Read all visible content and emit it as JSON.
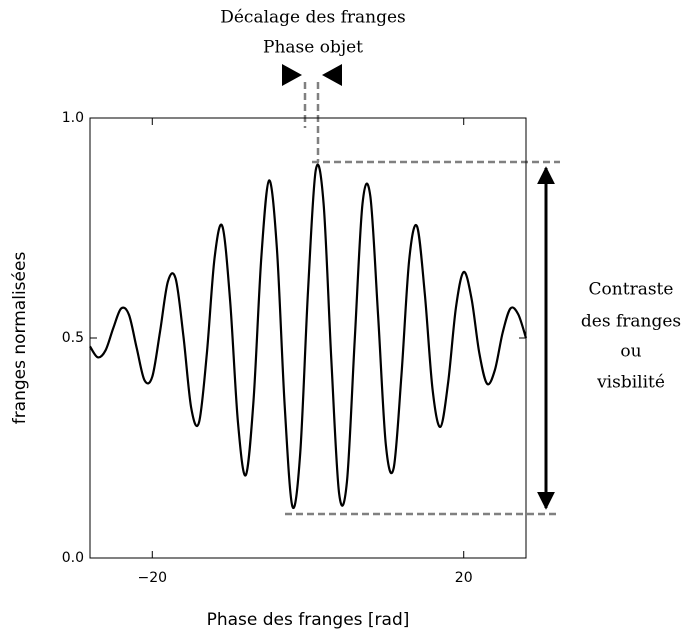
{
  "chart_data": {
    "type": "line",
    "annotations": [
      "Décalage des franges",
      "Phase objet",
      "Contraste",
      "des franges",
      "ou",
      "visbilité"
    ],
    "xlabel": "Phase des franges [rad]",
    "ylabel": "franges normalisées",
    "x": [
      -28,
      -27,
      -26,
      -25,
      -24,
      -23,
      -22,
      -21,
      -20,
      -19,
      -18,
      -17,
      -16,
      -15,
      -14,
      -13,
      -12,
      -11,
      -10,
      -9,
      -8,
      -7,
      -6,
      -5,
      -4,
      -3,
      -2,
      -1,
      0,
      1,
      2,
      3,
      4,
      5,
      6,
      7,
      8,
      9,
      10,
      11,
      12,
      13,
      14,
      15,
      16,
      17,
      18,
      19,
      20,
      21,
      22,
      23,
      24,
      25,
      26,
      27,
      28
    ],
    "values": [
      0.481,
      0.456,
      0.472,
      0.523,
      0.567,
      0.553,
      0.477,
      0.404,
      0.412,
      0.515,
      0.628,
      0.635,
      0.504,
      0.341,
      0.308,
      0.463,
      0.682,
      0.754,
      0.584,
      0.309,
      0.188,
      0.357,
      0.682,
      0.858,
      0.705,
      0.348,
      0.117,
      0.238,
      0.606,
      0.882,
      0.806,
      0.449,
      0.146,
      0.173,
      0.495,
      0.805,
      0.823,
      0.552,
      0.257,
      0.204,
      0.415,
      0.678,
      0.754,
      0.601,
      0.383,
      0.298,
      0.399,
      0.569,
      0.65,
      0.59,
      0.466,
      0.396,
      0.427,
      0.512,
      0.567,
      0.554,
      0.5
    ],
    "color": "#000000",
    "xlim": [
      -28,
      28
    ],
    "ylim": [
      0,
      1
    ],
    "xticks": [
      {
        "value": -20,
        "label": "−20"
      },
      {
        "value": 20,
        "label": "20"
      }
    ],
    "yticks": [
      {
        "value": 0,
        "label": "0.0"
      },
      {
        "value": 0.5,
        "label": "0.5"
      },
      {
        "value": 1,
        "label": "1.0"
      }
    ]
  }
}
